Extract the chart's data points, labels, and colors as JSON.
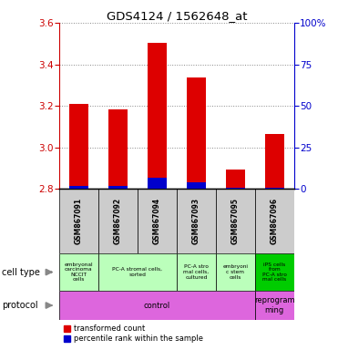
{
  "title": "GDS4124 / 1562648_at",
  "samples": [
    "GSM867091",
    "GSM867092",
    "GSM867094",
    "GSM867093",
    "GSM867095",
    "GSM867096"
  ],
  "red_values": [
    3.21,
    3.185,
    3.505,
    3.335,
    2.895,
    3.065
  ],
  "blue_percentiles": [
    2,
    2,
    7,
    4,
    1,
    1
  ],
  "ylim_left": [
    2.8,
    3.6
  ],
  "ylim_right": [
    0,
    100
  ],
  "yticks_left": [
    2.8,
    3.0,
    3.2,
    3.4,
    3.6
  ],
  "yticks_right": [
    0,
    25,
    50,
    75,
    100
  ],
  "bar_color_red": "#dd0000",
  "bar_color_blue": "#0000cc",
  "bar_width": 0.5,
  "background_color": "#ffffff",
  "left_axis_color": "#cc0000",
  "right_axis_color": "#0000cc",
  "grid_color": "#888888",
  "sample_bg": "#cccccc",
  "cell_type_bg_light": "#bbffbb",
  "cell_type_bg_dark": "#00cc00",
  "protocol_bg": "#dd66dd",
  "cell_data": [
    [
      0,
      1,
      "embryonal\ncarcinoma\nNCCIT\ncells",
      "#bbffbb"
    ],
    [
      1,
      3,
      "PC-A stromal cells,\nsorted",
      "#bbffbb"
    ],
    [
      3,
      4,
      "PC-A stro\nmal cells,\ncultured",
      "#bbffbb"
    ],
    [
      4,
      5,
      "embryoni\nc stem\ncells",
      "#bbffbb"
    ],
    [
      5,
      6,
      "iPS cells\nfrom\nPC-A stro\nmal cells",
      "#00cc00"
    ]
  ],
  "proto_data": [
    [
      0,
      5,
      "control",
      "#dd66dd"
    ],
    [
      5,
      6,
      "reprogram\nming",
      "#dd66dd"
    ]
  ]
}
